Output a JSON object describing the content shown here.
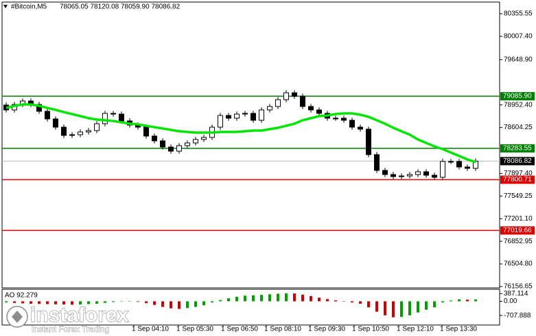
{
  "chart_data": [
    {
      "type": "candlestick",
      "title": "#Bitcoin,M5",
      "subtitle": "78065.05 78120.08 78059.90 78086.82",
      "open": [
        78950,
        78875,
        78959,
        79012,
        78959,
        78854,
        78737,
        78610,
        78483,
        78494,
        78536,
        78557,
        78663,
        78822,
        78811,
        78706,
        78642,
        78610,
        78473,
        78399,
        78304,
        78240,
        78325,
        78367,
        78420,
        78452,
        78610,
        78790,
        78748,
        78811,
        78822,
        78716,
        78875,
        78928,
        79033,
        79139,
        79086,
        78928,
        78875,
        78822,
        78748,
        78748,
        78716,
        78610,
        78579,
        78187,
        77944,
        77881,
        77849,
        77859,
        77881,
        77923,
        77870,
        77838,
        78082,
        78082,
        77997,
        77976
      ],
      "high": [
        78990,
        78999,
        79052,
        79052,
        78999,
        78894,
        78777,
        78650,
        78534,
        78576,
        78597,
        78703,
        78862,
        78862,
        78851,
        78746,
        78682,
        78650,
        78513,
        78439,
        78344,
        78365,
        78407,
        78460,
        78492,
        78650,
        78830,
        78830,
        78851,
        78862,
        78862,
        78915,
        78968,
        79073,
        79179,
        79179,
        79126,
        78968,
        78915,
        78862,
        78788,
        78788,
        78756,
        78650,
        78619,
        78227,
        77984,
        77921,
        77899,
        77921,
        77963,
        77963,
        77910,
        78122,
        78122,
        78122,
        78037,
        78127
      ],
      "low": [
        78835,
        78835,
        78919,
        78919,
        78814,
        78697,
        78570,
        78443,
        78443,
        78454,
        78496,
        78517,
        78623,
        78771,
        78666,
        78602,
        78570,
        78433,
        78359,
        78264,
        78200,
        78200,
        78285,
        78327,
        78380,
        78412,
        78570,
        78708,
        78708,
        78771,
        78676,
        78676,
        78835,
        78888,
        78993,
        79046,
        78888,
        78835,
        78782,
        78708,
        78708,
        78676,
        78570,
        78539,
        78147,
        77904,
        77841,
        77809,
        77809,
        77819,
        77841,
        77830,
        77798,
        77798,
        78042,
        77957,
        77936,
        77936
      ],
      "close": [
        78875,
        78959,
        79012,
        78959,
        78854,
        78737,
        78610,
        78483,
        78494,
        78536,
        78557,
        78663,
        78822,
        78811,
        78706,
        78642,
        78610,
        78473,
        78399,
        78304,
        78240,
        78325,
        78367,
        78420,
        78452,
        78610,
        78790,
        78748,
        78811,
        78822,
        78716,
        78875,
        78928,
        79033,
        79139,
        79086,
        78928,
        78875,
        78822,
        78748,
        78748,
        78716,
        78610,
        78579,
        78187,
        77944,
        77881,
        77849,
        77859,
        77881,
        77923,
        77870,
        77838,
        78082,
        78082,
        77997,
        77976,
        78087
      ],
      "up_color": "#ffffff",
      "down_color": "#000000",
      "overlay": {
        "color": "#00e600",
        "values": [
          78906,
          78938,
          78959,
          78959,
          78938,
          78906,
          78875,
          78843,
          78811,
          78780,
          78748,
          78727,
          78716,
          78705,
          78684,
          78663,
          78653,
          78631,
          78610,
          78589,
          78568,
          78547,
          78536,
          78526,
          78526,
          78526,
          78536,
          78536,
          78536,
          78547,
          78557,
          78557,
          78579,
          78600,
          78631,
          78663,
          78716,
          78748,
          78780,
          78790,
          78811,
          78822,
          78822,
          78801,
          78769,
          78716,
          78663,
          78600,
          78547,
          78494,
          78420,
          78367,
          78314,
          78272,
          78219,
          78166,
          78113,
          78071
        ]
      },
      "ylim": [
        76135.5,
        80535.4
      ],
      "yticks": [
        80355.55,
        {
          "value": 80007.4,
          "label": "80007.40"
        },
        {
          "value": 79648.9,
          "label": "79648.90"
        },
        {
          "value": 78952.4,
          "label": "78952.40"
        },
        78604.25,
        {
          "value": 77897.4,
          "label": "77897.40"
        },
        77549.25,
        {
          "value": 77201.1,
          "label": "77201.10"
        },
        76852.95,
        {
          "value": 76504.8,
          "label": "76504.80"
        },
        76156.65
      ],
      "levels": [
        {
          "value": 79085.9,
          "label": "79085.90",
          "color": "#008000"
        },
        {
          "value": 78283.55,
          "color": "#008000"
        },
        {
          "value": 77800.71,
          "color": "#e00000"
        },
        {
          "value": 77019.66,
          "color": "#e00000"
        }
      ],
      "last_price": {
        "value": 78086.82,
        "color": "#000000"
      },
      "xtick_labels": [
        "1 Sep 04:10",
        "1 Sep 05:30",
        "1 Sep 06:50",
        "1 Sep 08:10",
        "1 Sep 09:30",
        "1 Sep 10:50",
        "1 Sep 12:10",
        "1 Sep 13:30"
      ]
    },
    {
      "type": "bar",
      "title": "AO 92.279",
      "values": [
        -60,
        -80,
        -100,
        -120,
        -130,
        -140,
        -150,
        -160,
        -170,
        -160,
        -140,
        -120,
        -80,
        -40,
        -20,
        -10,
        -30,
        -90,
        -180,
        -280,
        -350,
        -380,
        -340,
        -280,
        -200,
        -60,
        60,
        150,
        230,
        280,
        300,
        320,
        350,
        380,
        400,
        390,
        330,
        260,
        180,
        110,
        50,
        0,
        -60,
        -120,
        -300,
        -520,
        -700,
        -800,
        -780,
        -700,
        -560,
        -420,
        -300,
        -60,
        40,
        100,
        80,
        92.279
      ],
      "up_color": "#00a000",
      "down_color": "#d00000",
      "ylim": [
        -1150,
        600
      ],
      "yticks": [
        387.114,
        {
          "value": 0,
          "label": "0.00"
        },
        -707.888
      ]
    }
  ],
  "watermark": {
    "name": "instaforex",
    "tagline": "Instant Forex Trading"
  }
}
